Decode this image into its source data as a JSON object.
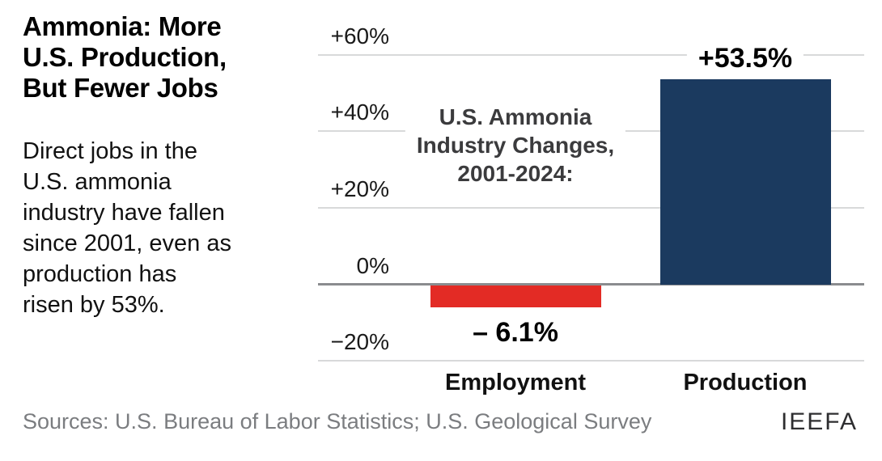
{
  "header": {
    "title": "Ammonia: More\nU.S. Production,\nBut Fewer Jobs",
    "subtitle": "Direct jobs in the\nU.S. ammonia\nindustry have fallen\nsince 2001, even as\nproduction has\nrisen by 53%."
  },
  "footer": {
    "sources": "Sources: U.S. Bureau of Labor Statistics; U.S. Geological Survey",
    "logo": "IEEFA"
  },
  "colors": {
    "positive_bar": "#1b3a5f",
    "negative_bar": "#e32b25",
    "gridline": "#d8d9da",
    "zero_line": "#8a8c8f"
  },
  "chart_data": {
    "type": "bar",
    "annotation": "U.S. Ammonia\nIndustry Changes,\n2001-2024:",
    "categories": [
      "Employment",
      "Production"
    ],
    "values": [
      -6.1,
      53.5
    ],
    "data_labels": [
      "– 6.1%",
      "+53.5%"
    ],
    "bar_colors": [
      "#e32b25",
      "#1b3a5f"
    ],
    "y_ticks": [
      {
        "label": "+60%",
        "value": 60
      },
      {
        "label": "+40%",
        "value": 40
      },
      {
        "label": "+20%",
        "value": 20
      },
      {
        "label": "0%",
        "value": 0
      },
      {
        "label": "−20%",
        "value": -20
      }
    ],
    "ylim": [
      -20,
      60
    ],
    "grid": true,
    "legend": "none"
  }
}
